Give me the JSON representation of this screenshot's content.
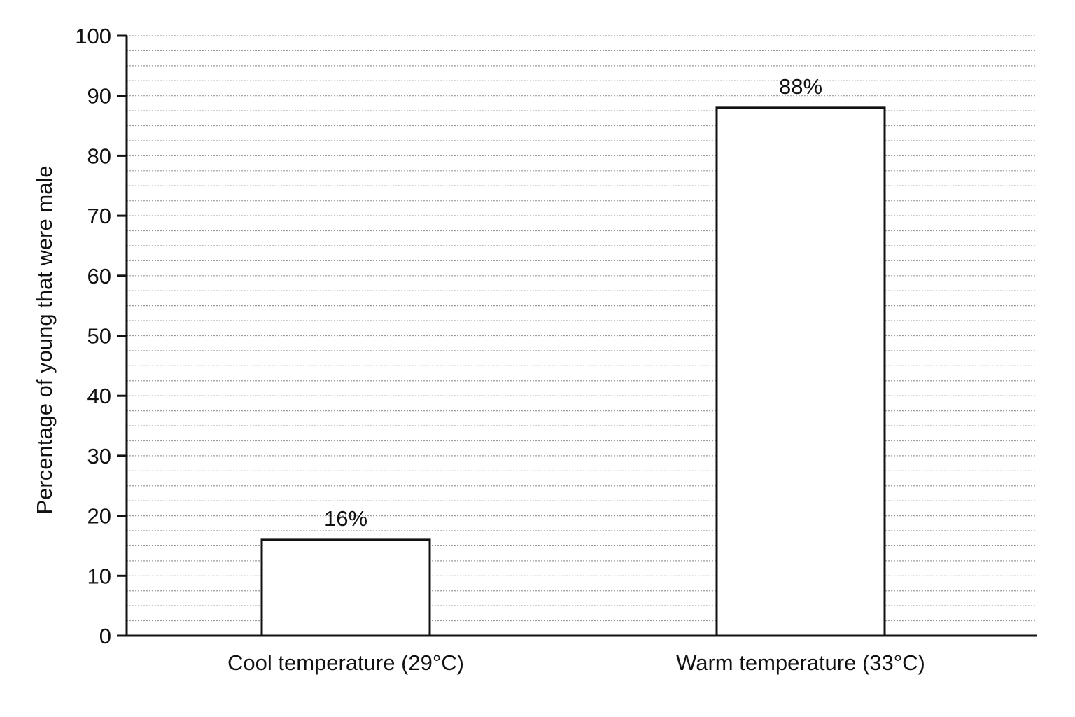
{
  "chart_data": {
    "type": "bar",
    "title": "",
    "xlabel": "",
    "ylabel": "Percentage of young that were male",
    "categories": [
      "Cool temperature (29°C)",
      "Warm temperature (33°C)"
    ],
    "values": [
      16,
      88
    ],
    "data_labels": [
      "16%",
      "88%"
    ],
    "ylim": [
      0,
      100
    ],
    "yticks": [
      0,
      10,
      20,
      30,
      40,
      50,
      60,
      70,
      80,
      90,
      100
    ],
    "minor_gridline_step": 2.5,
    "grid": true,
    "grid_style": "dotted",
    "legend": "none",
    "colors": {
      "bar_fill": "#ffffff",
      "bar_stroke": "#111111",
      "axis": "#111111",
      "grid": "#9a9a9a"
    }
  }
}
